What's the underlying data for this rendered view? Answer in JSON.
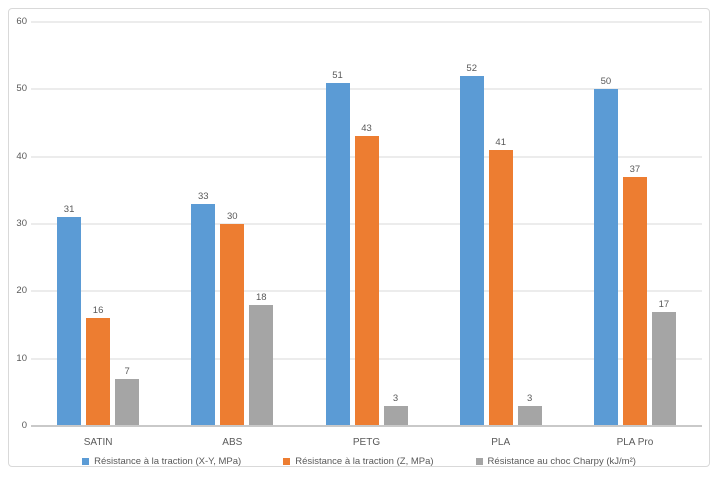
{
  "chart_data": {
    "type": "bar",
    "title": "",
    "xlabel": "",
    "ylabel": "",
    "categories": [
      "SATIN",
      "ABS",
      "PETG",
      "PLA",
      "PLA Pro"
    ],
    "series": [
      {
        "name": "Résistance à la traction (X-Y, MPa)",
        "color": "#5B9BD5",
        "values": [
          31,
          33,
          51,
          52,
          50
        ]
      },
      {
        "name": "Résistance à la traction (Z, MPa)",
        "color": "#ED7D31",
        "values": [
          16,
          30,
          43,
          41,
          37
        ]
      },
      {
        "name": "Résistance au choc Charpy (kJ/m²)",
        "color": "#A5A5A5",
        "values": [
          7,
          18,
          3,
          3,
          17
        ]
      }
    ],
    "ylim": [
      0,
      60
    ],
    "yticks": [
      0,
      10,
      20,
      30,
      40,
      50,
      60
    ],
    "grid": true,
    "data_labels": true,
    "legend_position": "bottom"
  },
  "colors": {
    "background": "#FFFFFF",
    "border": "#D9D9D9",
    "gridline": "#ECECEC",
    "axis_line": "#C9C9C9",
    "text": "#595959"
  }
}
